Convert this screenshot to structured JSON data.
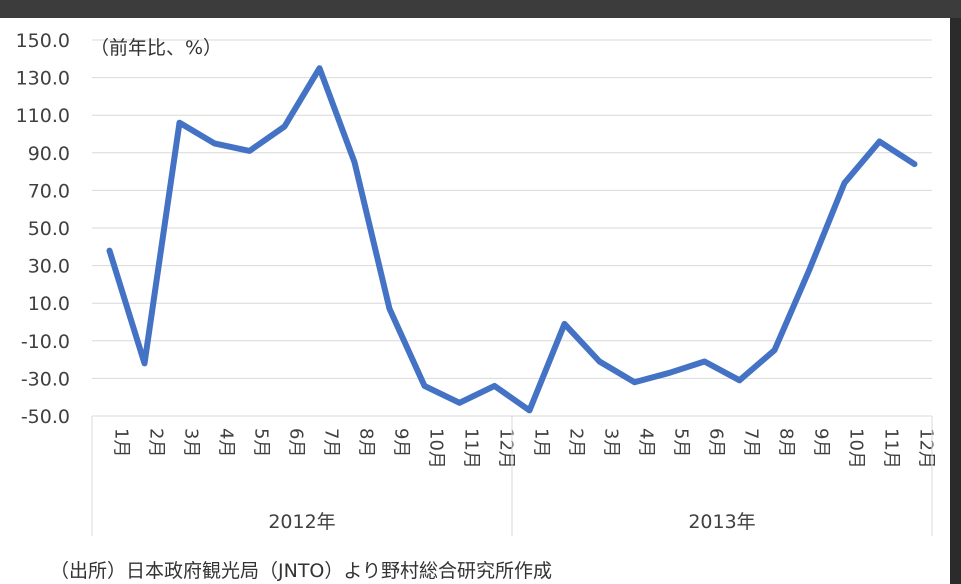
{
  "unit_label": "（前年比、%）",
  "source_note": "（出所）日本政府観光局（JNTO）より野村総合研究所作成",
  "colors": {
    "line": "#4472c4",
    "grid": "#d9d9d9",
    "tick_text": "#404040"
  },
  "chart_data": {
    "type": "line",
    "title": "",
    "xlabel": "",
    "ylabel": "",
    "ylim": [
      -50,
      150
    ],
    "y_ticks": [
      "150.0",
      "130.0",
      "110.0",
      "90.0",
      "70.0",
      "50.0",
      "30.0",
      "10.0",
      "-10.0",
      "-30.0",
      "-50.0"
    ],
    "grid": true,
    "legend": "none",
    "year_groups": [
      {
        "label": "2012年",
        "categories": [
          "1月",
          "2月",
          "3月",
          "4月",
          "5月",
          "6月",
          "7月",
          "8月",
          "9月",
          "10月",
          "11月",
          "12月"
        ]
      },
      {
        "label": "2013年",
        "categories": [
          "1月",
          "2月",
          "3月",
          "4月",
          "5月",
          "6月",
          "7月",
          "8月",
          "9月",
          "10月",
          "11月",
          "12月"
        ]
      }
    ],
    "series": [
      {
        "values": [
          38,
          -22,
          106,
          95,
          91,
          104,
          135,
          85,
          7,
          -34,
          -43,
          -34,
          -47,
          -1,
          -21,
          -32,
          -27,
          -21,
          -31,
          -15,
          28,
          74,
          96,
          84
        ]
      }
    ]
  }
}
